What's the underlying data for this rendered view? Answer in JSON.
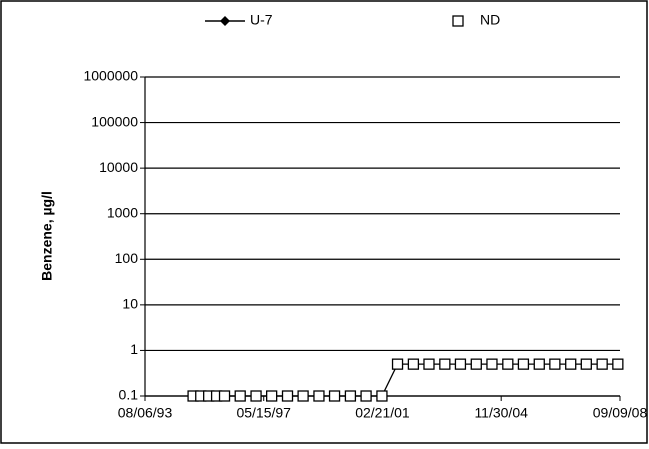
{
  "chart_data": {
    "type": "line",
    "y_label": "Benzene, µg/l",
    "x": [
      "02/15/95",
      "05/15/95",
      "08/15/95",
      "11/15/95",
      "02/15/96",
      "08/15/96",
      "02/15/97",
      "08/15/97",
      "02/15/98",
      "08/15/98",
      "02/15/99",
      "08/15/99",
      "02/15/00",
      "08/15/00",
      "02/15/01",
      "08/15/01",
      "02/15/02",
      "08/15/02",
      "02/15/03",
      "08/15/03",
      "02/15/04",
      "08/15/04",
      "02/15/05",
      "08/15/05",
      "02/15/06",
      "08/15/06",
      "02/15/07",
      "08/15/07",
      "02/15/08",
      "08/15/08"
    ],
    "series": [
      {
        "name": "U-7",
        "color": "#000000",
        "marker": "diamond",
        "values": [
          0.1,
          0.1,
          0.1,
          0.1,
          0.1,
          0.1,
          0.1,
          0.1,
          0.1,
          0.1,
          0.1,
          0.1,
          0.1,
          0.1,
          0.1,
          0.5,
          0.5,
          0.5,
          0.5,
          0.5,
          0.5,
          0.5,
          0.5,
          0.5,
          0.5,
          0.5,
          0.5,
          0.5,
          0.5,
          0.5
        ]
      },
      {
        "name": "ND",
        "color": "#000000",
        "marker": "square",
        "values": [
          0.1,
          0.1,
          0.1,
          0.1,
          0.1,
          0.1,
          0.1,
          0.1,
          0.1,
          0.1,
          0.1,
          0.1,
          0.1,
          0.1,
          0.1,
          0.5,
          0.5,
          0.5,
          0.5,
          0.5,
          0.5,
          0.5,
          0.5,
          0.5,
          0.5,
          0.5,
          0.5,
          0.5,
          0.5,
          0.5
        ]
      }
    ],
    "xlim": [
      "08/06/93",
      "09/09/08"
    ],
    "xticks": [
      "08/06/93",
      "05/15/97",
      "02/21/01",
      "11/30/04",
      "09/09/08"
    ],
    "ylim": [
      0.1,
      1000000
    ],
    "yticks": [
      0.1,
      1,
      10,
      100,
      1000,
      10000,
      100000,
      1000000
    ],
    "log_scale": true,
    "grid": true
  }
}
